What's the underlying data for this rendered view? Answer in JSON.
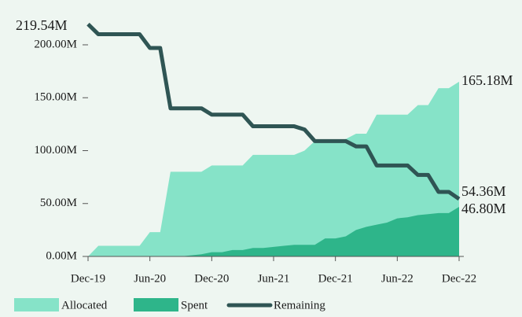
{
  "chart_data": {
    "type": "area",
    "categories": [
      "Dec-19",
      null,
      null,
      null,
      null,
      null,
      "Jun-20",
      null,
      null,
      null,
      null,
      null,
      "Dec-20",
      null,
      null,
      null,
      null,
      null,
      "Jun-21",
      null,
      null,
      null,
      null,
      null,
      "Dec-21",
      null,
      null,
      null,
      null,
      null,
      "Jun-22",
      null,
      null,
      null,
      null,
      null,
      "Dec-22"
    ],
    "series": [
      {
        "name": "Allocated",
        "color": "#86e3c8",
        "style": "area",
        "values": [
          0,
          10,
          10,
          10,
          10,
          10,
          23,
          23,
          80,
          80,
          80,
          80,
          86,
          86,
          86,
          86,
          96,
          96,
          96,
          96,
          96,
          100,
          109,
          109,
          109,
          111,
          116,
          116,
          134,
          134,
          134,
          134,
          143,
          143,
          159,
          159,
          165.18
        ],
        "value_labels": [
          null,
          null,
          null,
          null,
          null,
          null,
          null,
          null,
          null,
          null,
          null,
          null,
          null,
          null,
          null,
          null,
          null,
          null,
          null,
          null,
          null,
          null,
          null,
          null,
          null,
          null,
          null,
          null,
          null,
          null,
          null,
          null,
          null,
          null,
          null,
          null,
          "165.18M"
        ]
      },
      {
        "name": "Spent",
        "color": "#2eb58a",
        "style": "area",
        "values": [
          0,
          0,
          0,
          0,
          0,
          0,
          0,
          0,
          0,
          0,
          1,
          2,
          4,
          4,
          6,
          6,
          8,
          8,
          9,
          10,
          11,
          11,
          11,
          17,
          17,
          19,
          25,
          28,
          30,
          32,
          36,
          37,
          39,
          40,
          41,
          41,
          46.8
        ],
        "value_labels": [
          null,
          null,
          null,
          null,
          null,
          null,
          null,
          null,
          null,
          null,
          null,
          null,
          null,
          null,
          null,
          null,
          null,
          null,
          null,
          null,
          null,
          null,
          null,
          null,
          null,
          null,
          null,
          null,
          null,
          null,
          null,
          null,
          null,
          null,
          null,
          null,
          "46.80M"
        ]
      },
      {
        "name": "Remaining",
        "color": "#2f5554",
        "style": "line",
        "values": [
          219.54,
          210,
          210,
          210,
          210,
          210,
          197,
          197,
          140,
          140,
          140,
          140,
          134,
          134,
          134,
          134,
          123,
          123,
          123,
          123,
          123,
          120,
          109,
          109,
          109,
          109,
          104,
          104,
          86,
          86,
          86,
          86,
          77,
          77,
          61,
          61,
          54.36
        ],
        "value_labels": [
          "219.54M",
          null,
          null,
          null,
          null,
          null,
          null,
          null,
          null,
          null,
          null,
          null,
          null,
          null,
          null,
          null,
          null,
          null,
          null,
          null,
          null,
          null,
          null,
          null,
          null,
          null,
          null,
          null,
          null,
          null,
          null,
          null,
          null,
          null,
          null,
          null,
          "54.36M"
        ]
      }
    ],
    "ylim": [
      0,
      219.54
    ],
    "yticks": [
      {
        "value": 0,
        "label": "0.00M"
      },
      {
        "value": 50,
        "label": "50.00M"
      },
      {
        "value": 100,
        "label": "100.00M"
      },
      {
        "value": 150,
        "label": "150.00M"
      },
      {
        "value": 200,
        "label": "200.00M"
      }
    ],
    "grid": false,
    "legend": "bottom-left"
  }
}
